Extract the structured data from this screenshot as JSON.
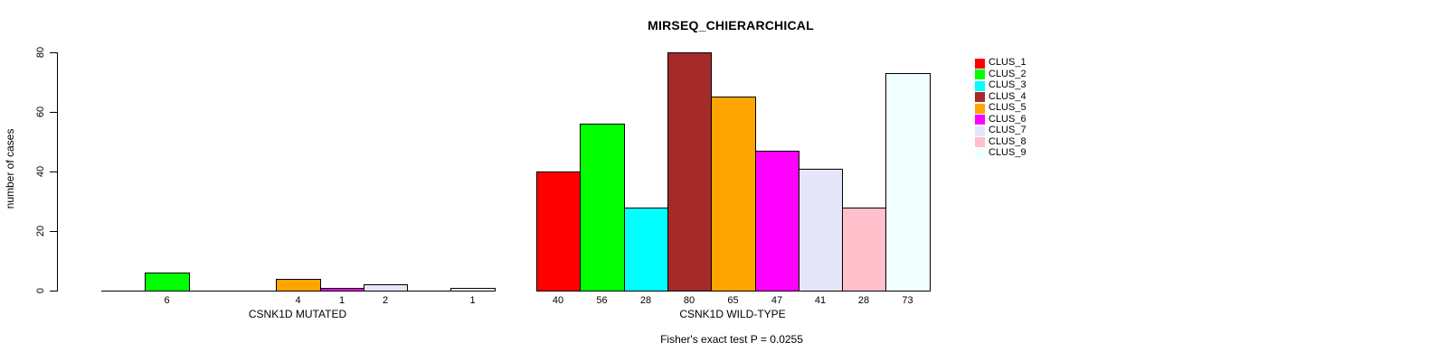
{
  "chart_data": {
    "type": "bar",
    "title": "MIRSEQ_CHIERARCHICAL",
    "ylabel": "number of cases",
    "ylim": [
      0,
      80
    ],
    "yticks": [
      0,
      20,
      40,
      60,
      80
    ],
    "grid": false,
    "legend_position": "right",
    "categories": [
      "CLUS_1",
      "CLUS_2",
      "CLUS_3",
      "CLUS_4",
      "CLUS_5",
      "CLUS_6",
      "CLUS_7",
      "CLUS_8",
      "CLUS_9"
    ],
    "colors": [
      "#FF0000",
      "#00FF00",
      "#00FFFF",
      "#A52A2A",
      "#FFA500",
      "#FF00FF",
      "#E6E6FA",
      "#FFC0CB",
      "#F0FFFF"
    ],
    "groups": [
      {
        "label": "CSNK1D MUTATED",
        "values": [
          0,
          6,
          0,
          0,
          4,
          1,
          2,
          0,
          1
        ]
      },
      {
        "label": "CSNK1D WILD-TYPE",
        "values": [
          40,
          56,
          28,
          80,
          65,
          47,
          41,
          28,
          73
        ]
      }
    ],
    "subtitle": "Fisher's exact test P = 0.0255",
    "bar_border_color": "#000000",
    "axis_color": "#000000"
  }
}
